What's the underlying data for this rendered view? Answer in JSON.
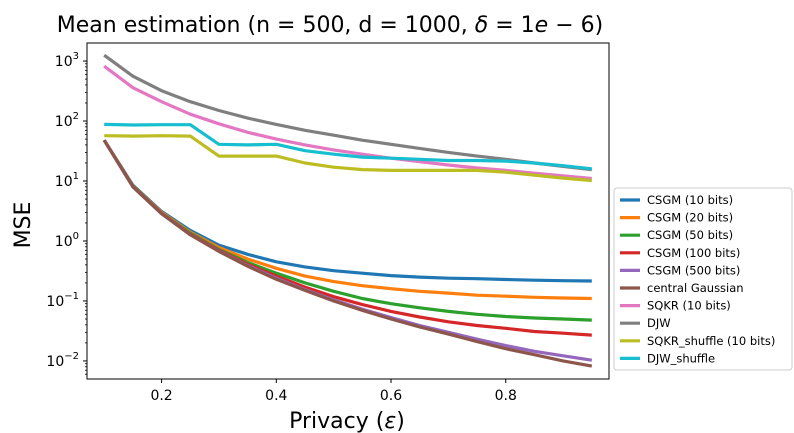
{
  "chart_data": {
    "type": "line",
    "title": "Mean estimation (n = 500, d = 1000, δ = 1e − 6)",
    "title_parts": {
      "prefix": "Mean estimation (n = 500, d = 1000, ",
      "delta_symbol": "δ",
      "equals": " = 1",
      "e_symbol": "e",
      "suffix": " − 6)"
    },
    "xlabel": "Privacy (ε)",
    "xlabel_parts": {
      "prefix": "Privacy (",
      "symbol": "ε",
      "suffix": ")"
    },
    "ylabel": "MSE",
    "yscale": "log",
    "xlim": [
      0.07,
      0.98
    ],
    "ylim": [
      0.005,
      2000
    ],
    "xticks": [
      {
        "value": 0.2,
        "label": "0.2"
      },
      {
        "value": 0.4,
        "label": "0.4"
      },
      {
        "value": 0.6,
        "label": "0.6"
      },
      {
        "value": 0.8,
        "label": "0.8"
      }
    ],
    "yticks": [
      {
        "value": 1000,
        "base": "10",
        "exp": "3"
      },
      {
        "value": 100,
        "base": "10",
        "exp": "2"
      },
      {
        "value": 10,
        "base": "10",
        "exp": "1"
      },
      {
        "value": 1,
        "base": "10",
        "exp": "0"
      },
      {
        "value": 0.1,
        "base": "10",
        "exp": "−1"
      },
      {
        "value": 0.01,
        "base": "10",
        "exp": "−2"
      }
    ],
    "grid": false,
    "legend_position": "outside-right",
    "x": [
      0.1,
      0.15,
      0.2,
      0.25,
      0.3,
      0.35,
      0.4,
      0.45,
      0.5,
      0.55,
      0.6,
      0.65,
      0.7,
      0.75,
      0.8,
      0.85,
      0.9,
      0.95
    ],
    "series": [
      {
        "name": "CSGM (10 bits)",
        "color": "#1f77b4",
        "values": [
          48,
          8.5,
          3.1,
          1.5,
          0.85,
          0.6,
          0.45,
          0.37,
          0.32,
          0.29,
          0.265,
          0.25,
          0.24,
          0.235,
          0.228,
          0.222,
          0.218,
          0.215
        ]
      },
      {
        "name": "CSGM (20 bits)",
        "color": "#ff7f0e",
        "values": [
          48,
          8.3,
          3.0,
          1.4,
          0.78,
          0.5,
          0.35,
          0.26,
          0.21,
          0.18,
          0.16,
          0.145,
          0.135,
          0.125,
          0.12,
          0.115,
          0.112,
          0.11
        ]
      },
      {
        "name": "CSGM (50 bits)",
        "color": "#2ca02c",
        "values": [
          48,
          8.2,
          2.9,
          1.35,
          0.72,
          0.44,
          0.29,
          0.2,
          0.145,
          0.11,
          0.09,
          0.077,
          0.067,
          0.06,
          0.055,
          0.052,
          0.05,
          0.048
        ]
      },
      {
        "name": "CSGM (100 bits)",
        "color": "#d62728",
        "values": [
          48,
          8.1,
          2.9,
          1.3,
          0.7,
          0.41,
          0.26,
          0.17,
          0.118,
          0.087,
          0.067,
          0.054,
          0.045,
          0.039,
          0.035,
          0.031,
          0.029,
          0.027
        ]
      },
      {
        "name": "CSGM (500 bits)",
        "color": "#9467bd",
        "values": [
          48,
          8.0,
          2.85,
          1.28,
          0.68,
          0.39,
          0.24,
          0.155,
          0.104,
          0.073,
          0.053,
          0.039,
          0.03,
          0.023,
          0.018,
          0.0145,
          0.0122,
          0.0103
        ]
      },
      {
        "name": "central Gaussian",
        "color": "#8c564b",
        "values": [
          48,
          8.0,
          2.85,
          1.27,
          0.67,
          0.38,
          0.23,
          0.15,
          0.1,
          0.07,
          0.05,
          0.037,
          0.028,
          0.021,
          0.016,
          0.0127,
          0.01,
          0.0082
        ]
      },
      {
        "name": "SQKR (10 bits)",
        "color": "#e377c2",
        "values": [
          820,
          360,
          210,
          130,
          90,
          65,
          50,
          40,
          33,
          28,
          24,
          21,
          18.5,
          16.5,
          15,
          13.5,
          12.2,
          11
        ]
      },
      {
        "name": "DJW",
        "color": "#7f7f7f",
        "values": [
          1250,
          560,
          320,
          210,
          150,
          112,
          88,
          70,
          58,
          48,
          41,
          35,
          30,
          26,
          23,
          20,
          17.5,
          15.5
        ]
      },
      {
        "name": "SQKR_shuffle (10 bits)",
        "color": "#bcbd22",
        "values": [
          57,
          56,
          57,
          56,
          26,
          26,
          26,
          20,
          17,
          15.5,
          15,
          15,
          15,
          15,
          14,
          12.5,
          11.2,
          10.2
        ]
      },
      {
        "name": "DJW_shuffle",
        "color": "#17becf",
        "values": [
          88,
          86,
          87,
          87,
          41,
          40,
          41,
          32,
          28,
          25,
          24,
          23,
          22,
          22,
          21.5,
          20,
          18,
          16
        ]
      }
    ]
  }
}
